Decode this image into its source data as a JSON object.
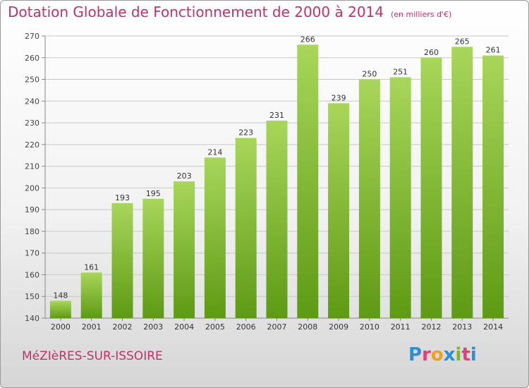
{
  "header": {
    "title": "Dotation Globale de Fonctionnement de 2000 à 2014",
    "subtitle": "(en milliers d'€)"
  },
  "footer": {
    "town": "MéZIèRES-SUR-ISSOIRE",
    "brand_letters": [
      "P",
      "r",
      "o",
      "x",
      "i",
      "t",
      "i"
    ],
    "brand_colors": [
      "#2f8fd6",
      "#e0407a",
      "#f0a020",
      "#2f8fd6",
      "#7ab82a",
      "#e0407a",
      "#2f8fd6"
    ]
  },
  "colors": {
    "bar_top": "#a8d65a",
    "bar_bottom": "#5e9a14",
    "title": "#c0326b",
    "grid": "#c8c8c8"
  },
  "chart_data": {
    "type": "bar",
    "categories": [
      "2000",
      "2001",
      "2002",
      "2003",
      "2004",
      "2005",
      "2006",
      "2007",
      "2008",
      "2009",
      "2010",
      "2011",
      "2012",
      "2013",
      "2014"
    ],
    "values": [
      148,
      161,
      193,
      195,
      203,
      214,
      223,
      231,
      266,
      239,
      250,
      251,
      260,
      265,
      261
    ],
    "data_labels": [
      "148",
      "161",
      "193",
      "195",
      "203",
      "214",
      "223",
      "231",
      "266",
      "239",
      "250",
      "251",
      "260",
      "265",
      "261"
    ],
    "yticks": [
      "140",
      "150",
      "160",
      "170",
      "180",
      "190",
      "200",
      "210",
      "220",
      "230",
      "240",
      "250",
      "260",
      "270"
    ],
    "ylim": [
      140,
      270
    ],
    "grid": true,
    "title": "Dotation Globale de Fonctionnement de 2000 à 2014",
    "xlabel": "",
    "ylabel": ""
  }
}
